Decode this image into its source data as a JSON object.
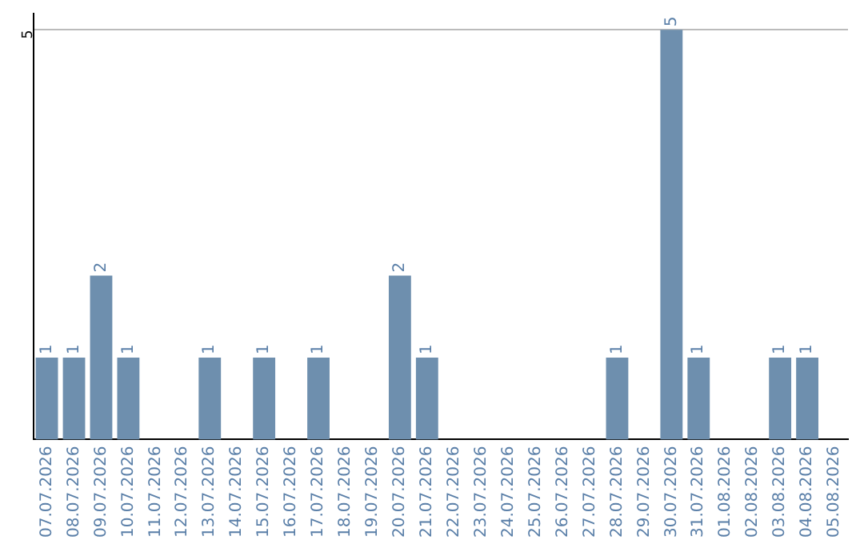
{
  "chart_data": {
    "type": "bar",
    "categories": [
      "07.07.2026",
      "08.07.2026",
      "09.07.2026",
      "10.07.2026",
      "11.07.2026",
      "12.07.2026",
      "13.07.2026",
      "14.07.2026",
      "15.07.2026",
      "16.07.2026",
      "17.07.2026",
      "18.07.2026",
      "19.07.2026",
      "20.07.2026",
      "21.07.2026",
      "22.07.2026",
      "23.07.2026",
      "24.07.2026",
      "25.07.2026",
      "26.07.2026",
      "27.07.2026",
      "28.07.2026",
      "29.07.2026",
      "30.07.2026",
      "31.07.2026",
      "01.08.2026",
      "02.08.2026",
      "03.08.2026",
      "04.08.2026",
      "05.08.2026"
    ],
    "values": [
      1,
      1,
      2,
      1,
      0,
      0,
      1,
      0,
      1,
      0,
      1,
      0,
      0,
      2,
      1,
      0,
      0,
      0,
      0,
      0,
      0,
      1,
      0,
      5,
      1,
      0,
      0,
      1,
      1,
      0
    ],
    "value_labels": [
      "1",
      "1",
      "2",
      "1",
      null,
      null,
      "1",
      null,
      "1",
      null,
      "1",
      null,
      null,
      "2",
      "1",
      null,
      null,
      null,
      null,
      null,
      null,
      "1",
      null,
      "5",
      "1",
      null,
      null,
      "1",
      "1",
      null
    ],
    "color": "#6e8fae",
    "ylim": [
      0,
      5.2
    ],
    "yticks": [
      5
    ],
    "grid": "y"
  }
}
